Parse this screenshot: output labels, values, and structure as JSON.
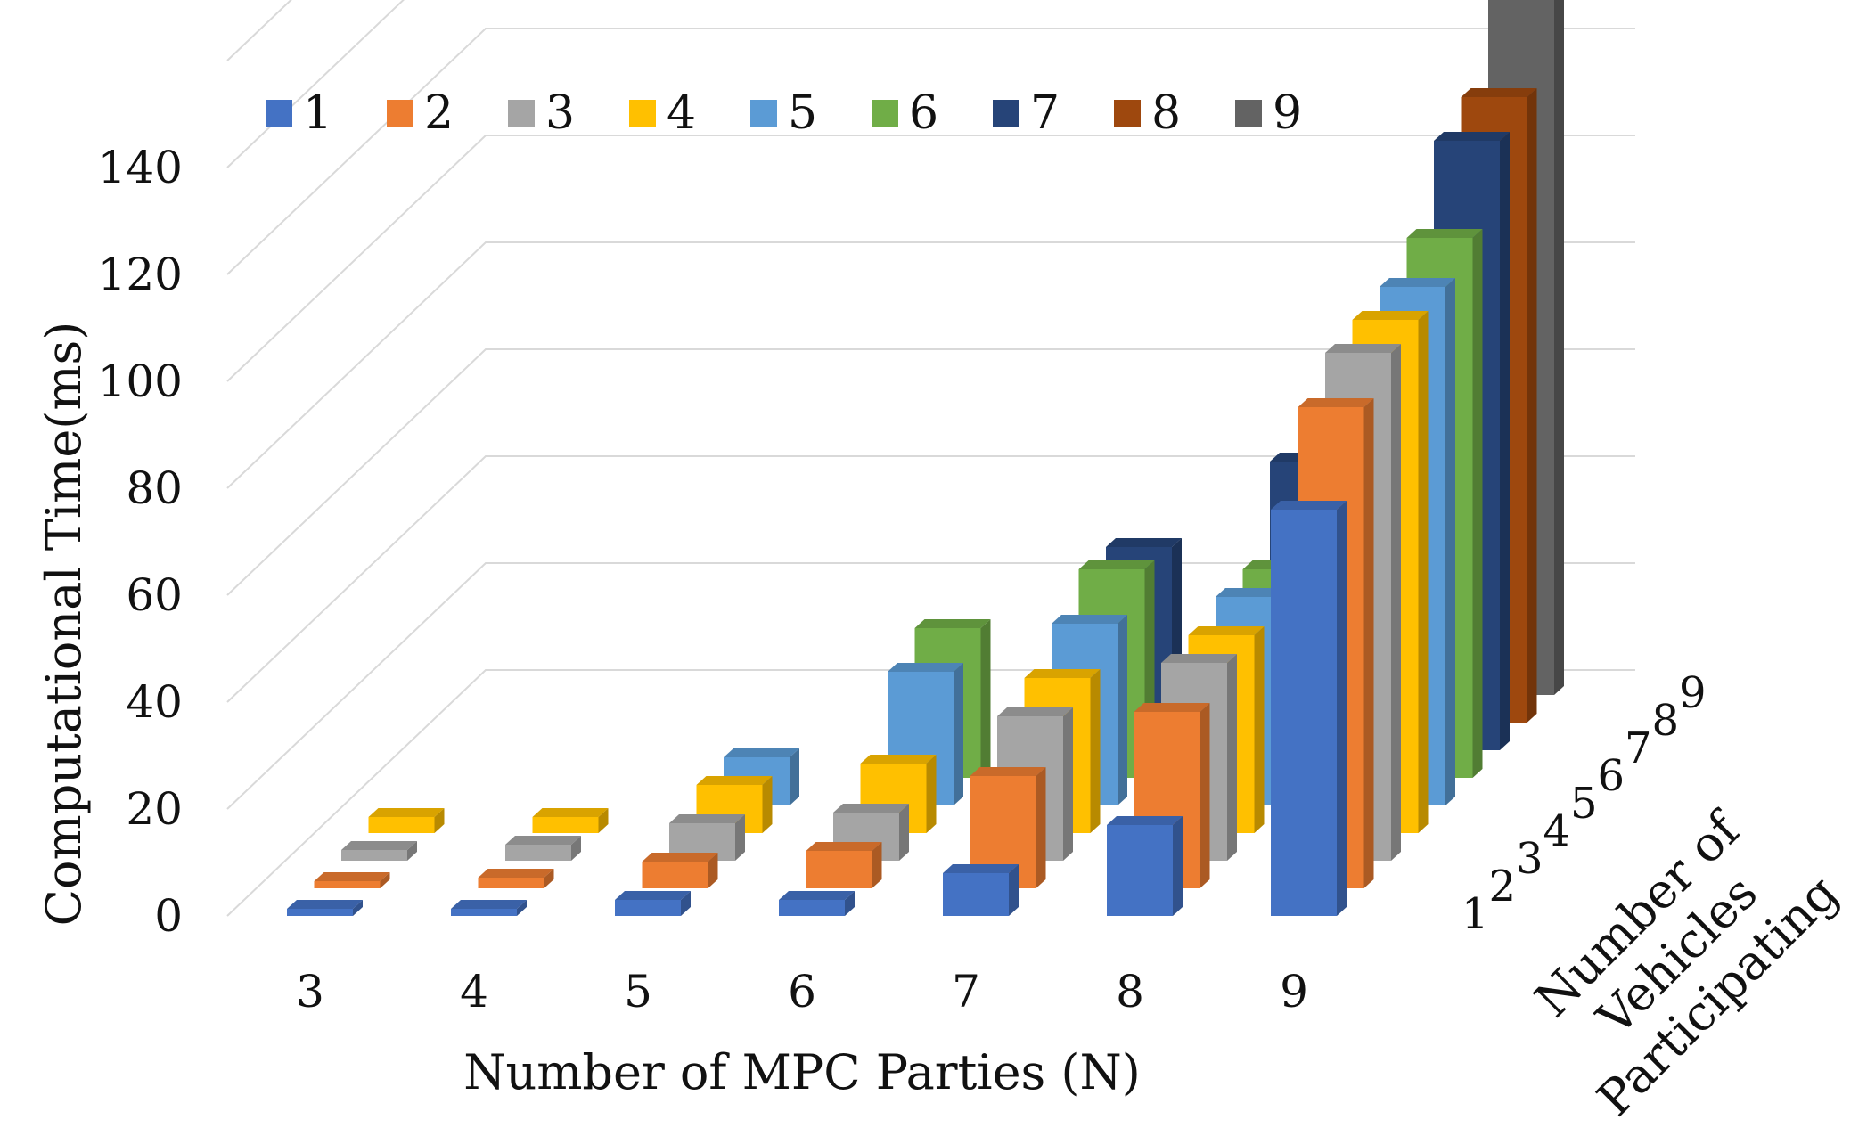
{
  "chart_data": {
    "type": "bar",
    "subtype": "3d-clustered-column",
    "title": "",
    "xlabel": "Number of MPC Parties (N)",
    "ylabel": "Computational Time(ms)",
    "zlabel": "Number of Vehicles Participating",
    "zlabel_lines": [
      "Number of",
      "Vehicles",
      "Participating"
    ],
    "categories": [
      "3",
      "4",
      "5",
      "6",
      "7",
      "8",
      "9"
    ],
    "depth_ticks": [
      "1",
      "2",
      "3",
      "4",
      "5",
      "6",
      "7",
      "8",
      "9"
    ],
    "y_ticks": [
      "0",
      "20",
      "40",
      "60",
      "80",
      "100",
      "120",
      "140"
    ],
    "ylim": [
      0,
      140
    ],
    "legend_position": "top",
    "series": [
      {
        "name": "1",
        "color": "#4472C4",
        "values": [
          1,
          1,
          3,
          3,
          8,
          17,
          76
        ]
      },
      {
        "name": "2",
        "color": "#ED7D31",
        "values": [
          1,
          2,
          5,
          7,
          21,
          33,
          90
        ]
      },
      {
        "name": "3",
        "color": "#A5A5A5",
        "values": [
          2,
          3,
          7,
          9,
          27,
          37,
          95
        ]
      },
      {
        "name": "4",
        "color": "#FFC000",
        "values": [
          3,
          3,
          9,
          13,
          29,
          37,
          96
        ]
      },
      {
        "name": "5",
        "color": "#5B9BD5",
        "values": null
      },
      {
        "name": "6",
        "color": "#70AD47",
        "values": null
      },
      {
        "name": "7",
        "color": "#264478",
        "values": null
      },
      {
        "name": "8",
        "color": "#9E480E",
        "values": null
      },
      {
        "name": "9",
        "color": "#636363",
        "values": null
      }
    ],
    "series_values": {
      "5": [
        null,
        null,
        9,
        25,
        34,
        39,
        97
      ],
      "6": [
        null,
        null,
        null,
        28,
        39,
        39,
        101
      ],
      "7": [
        null,
        null,
        null,
        null,
        38,
        54,
        114
      ],
      "8": [
        null,
        null,
        null,
        null,
        null,
        37,
        117
      ],
      "9": [
        null,
        null,
        null,
        null,
        null,
        null,
        131
      ]
    }
  }
}
